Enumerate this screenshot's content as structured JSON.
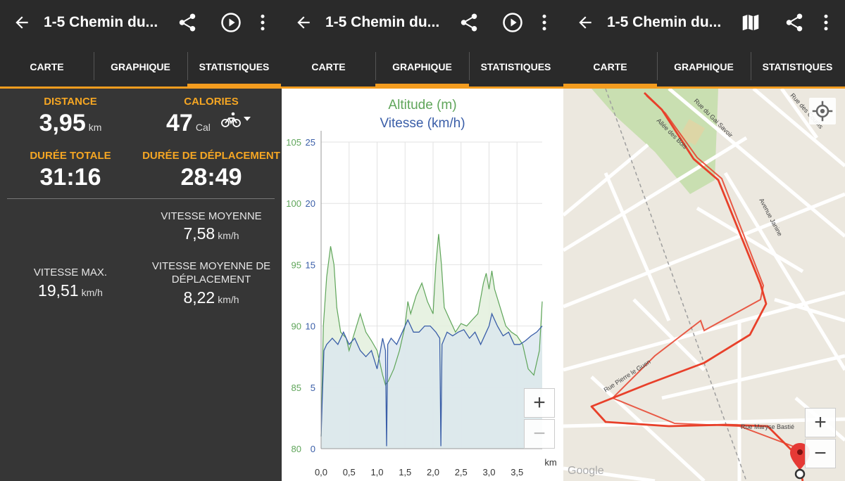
{
  "app": {
    "title": "1-5 Chemin du...",
    "accent": "#f39c1f",
    "tabs": [
      "CARTE",
      "GRAPHIQUE",
      "STATISTIQUES"
    ]
  },
  "stats": {
    "distance_label": "DISTANCE",
    "distance_value": "3,95",
    "distance_unit": "km",
    "calories_label": "CALORIES",
    "calories_value": "47",
    "calories_unit": "Cal",
    "activity_icon": "bicycle-icon",
    "total_label": "DURÉE TOTALE",
    "total_value": "31:16",
    "moving_label": "DURÉE DE DÉPLACEMENT",
    "moving_value": "28:49",
    "avg_label": "VITESSE MOYENNE",
    "avg_value": "7,58",
    "avg_unit": "km/h",
    "max_label": "VITESSE MAX.",
    "max_value": "19,51",
    "max_unit": "km/h",
    "avg_moving_label_1": "VITESSE MOYENNE DE",
    "avg_moving_label_2": "DÉPLACEMENT",
    "avg_moving_value": "8,22",
    "avg_moving_unit": "km/h"
  },
  "chart_data": {
    "type": "line",
    "title_1": "Altitude (m)",
    "title_2": "Vitesse (km/h)",
    "xlabel": "km",
    "x_ticks": [
      "0,0",
      "0,5",
      "1,0",
      "1,5",
      "2,0",
      "2,5",
      "3,0",
      "3,5"
    ],
    "xlim": [
      0,
      3.95
    ],
    "y_left_ticks": [
      "105",
      "100",
      "95",
      "90",
      "85",
      "80"
    ],
    "y_right_ticks": [
      "25",
      "20",
      "15",
      "10",
      "5",
      "0"
    ],
    "ylim_altitude": [
      80,
      105
    ],
    "ylim_speed": [
      0,
      25
    ],
    "series": [
      {
        "name": "Altitude (m)",
        "color": "#5fa55a",
        "x": [
          0.0,
          0.04,
          0.1,
          0.17,
          0.23,
          0.28,
          0.35,
          0.45,
          0.5,
          0.6,
          0.7,
          0.8,
          0.9,
          1.0,
          1.1,
          1.15,
          1.2,
          1.3,
          1.4,
          1.5,
          1.55,
          1.6,
          1.7,
          1.8,
          1.9,
          2.0,
          2.05,
          2.1,
          2.15,
          2.2,
          2.3,
          2.4,
          2.5,
          2.6,
          2.7,
          2.8,
          2.9,
          2.95,
          3.0,
          3.05,
          3.1,
          3.2,
          3.3,
          3.4,
          3.5,
          3.6,
          3.7,
          3.8,
          3.9,
          3.95
        ],
        "values": [
          81,
          90,
          94,
          96.5,
          95,
          91.5,
          89.5,
          89,
          88,
          89.5,
          91,
          89.5,
          88.8,
          88,
          86,
          85.2,
          85.5,
          86.5,
          88,
          90,
          92,
          91,
          92.5,
          93.5,
          92,
          91,
          95,
          97.5,
          95,
          91.5,
          90.5,
          89.5,
          90.2,
          90,
          90.5,
          91,
          93.5,
          94.3,
          93,
          94.5,
          93,
          91.5,
          90,
          89.5,
          89.2,
          88.5,
          86.5,
          86,
          88,
          92
        ]
      },
      {
        "name": "Vitesse (km/h)",
        "color": "#3a5ea8",
        "x": [
          0.0,
          0.02,
          0.05,
          0.1,
          0.2,
          0.3,
          0.4,
          0.5,
          0.6,
          0.7,
          0.8,
          0.9,
          1.0,
          1.1,
          1.15,
          1.17,
          1.19,
          1.25,
          1.35,
          1.45,
          1.55,
          1.65,
          1.75,
          1.85,
          1.95,
          2.05,
          2.12,
          2.14,
          2.16,
          2.25,
          2.35,
          2.45,
          2.55,
          2.65,
          2.75,
          2.85,
          2.95,
          3.0,
          3.05,
          3.15,
          3.25,
          3.35,
          3.45,
          3.55,
          3.65,
          3.75,
          3.85,
          3.95
        ],
        "values": [
          1,
          4,
          8,
          8.5,
          9,
          8.5,
          9.5,
          8.5,
          9,
          8,
          7.5,
          8,
          6.5,
          9,
          8,
          0.2,
          8.5,
          9,
          8.5,
          9.5,
          10.5,
          9.5,
          9.5,
          10,
          10,
          9.5,
          9,
          0.2,
          8.5,
          9.5,
          9.2,
          9.5,
          9.7,
          9,
          9.5,
          8.5,
          9.5,
          10,
          11,
          10,
          9.2,
          9.5,
          8.5,
          8.5,
          8.8,
          9.2,
          9.5,
          10
        ]
      }
    ]
  },
  "map": {
    "streets": [
      "Rue du Gai Savoir",
      "Rue des Courlis",
      "Allée des Bois",
      "Avenue Janine",
      "Rue Pierre le Guen",
      "Rue Maryse Bastié"
    ],
    "logo": "Google",
    "zoom_in": "+",
    "zoom_out": "−",
    "zoom_out_disabled": "−",
    "zoom_in_chart": "+"
  },
  "icons": {
    "back": "arrow-back-icon",
    "share": "share-icon",
    "play": "play-circle-icon",
    "more": "more-vert-icon",
    "map": "map-icon",
    "locate": "my-location-icon",
    "marker": "map-marker-icon"
  }
}
